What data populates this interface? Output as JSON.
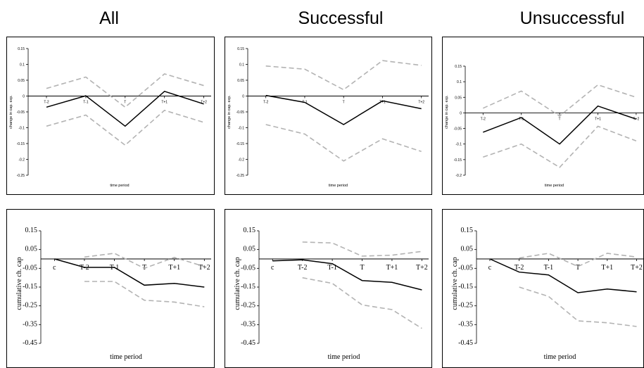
{
  "column_titles": [
    "All",
    "Successful",
    "Unsuccessful"
  ],
  "chart_data": [
    {
      "type": "line",
      "group": "All",
      "row": "top",
      "categories": [
        "T-2",
        "T-1",
        "T",
        "T+1",
        "T+2"
      ],
      "ylabel": "change in cap. exp.",
      "xlabel": "time period",
      "ylim": [
        -0.25,
        0.15
      ],
      "yticks": [
        0.15,
        0.1,
        0.05,
        0,
        -0.05,
        -0.1,
        -0.15,
        -0.2,
        -0.25
      ],
      "ytick_labels": [
        "0.15",
        "0.1",
        "0.05",
        "0",
        "-0.05",
        "-0.1",
        "-0.15",
        "-0.2",
        "-0.25"
      ],
      "series": [
        {
          "style": "solid",
          "values": [
            -0.035,
            0.001,
            -0.095,
            0.015,
            -0.025
          ]
        },
        {
          "style": "dashed",
          "values": [
            0.024,
            0.06,
            -0.035,
            0.07,
            0.033
          ]
        },
        {
          "style": "dashed",
          "values": [
            -0.095,
            -0.06,
            -0.155,
            -0.045,
            -0.083
          ]
        }
      ]
    },
    {
      "type": "line",
      "group": "Successful",
      "row": "top",
      "categories": [
        "T-2",
        "T-1",
        "T",
        "T+1",
        "T+2"
      ],
      "ylabel": "change in cap. exp.",
      "xlabel": "time period",
      "ylim": [
        -0.25,
        0.15
      ],
      "yticks": [
        0.15,
        0.1,
        0.05,
        0,
        -0.05,
        -0.1,
        -0.15,
        -0.2,
        -0.25
      ],
      "ytick_labels": [
        "0.15",
        "0.1",
        "0.05",
        "0",
        "-0.05",
        "-0.1",
        "-0.15",
        "-0.2",
        "-0.25"
      ],
      "series": [
        {
          "style": "solid",
          "values": [
            0.002,
            -0.02,
            -0.09,
            -0.015,
            -0.04
          ]
        },
        {
          "style": "dashed",
          "values": [
            0.095,
            0.085,
            0.02,
            0.112,
            0.097
          ]
        },
        {
          "style": "dashed",
          "values": [
            -0.09,
            -0.12,
            -0.205,
            -0.135,
            -0.175
          ]
        }
      ]
    },
    {
      "type": "line",
      "group": "Unsuccessful",
      "row": "top",
      "categories": [
        "T-2",
        "T-1",
        "T",
        "T+1",
        "T+2"
      ],
      "ylabel": "change in cap. exp.",
      "xlabel": "time period",
      "ylim": [
        -0.2,
        0.15
      ],
      "yticks": [
        0.15,
        0.1,
        0.05,
        0,
        -0.05,
        -0.1,
        -0.15,
        -0.2
      ],
      "ytick_labels": [
        "0.15",
        "0.1",
        "0.05",
        "0",
        "-0.05",
        "-0.1",
        "-0.15",
        "-0.2"
      ],
      "series": [
        {
          "style": "solid",
          "values": [
            -0.062,
            -0.015,
            -0.1,
            0.022,
            -0.02
          ]
        },
        {
          "style": "dashed",
          "values": [
            0.015,
            0.07,
            -0.01,
            0.09,
            0.05
          ]
        },
        {
          "style": "dashed",
          "values": [
            -0.142,
            -0.1,
            -0.175,
            -0.043,
            -0.09
          ]
        }
      ]
    },
    {
      "type": "line",
      "group": "All",
      "row": "bottom",
      "categories": [
        "c",
        "T-2",
        "T-1",
        "T",
        "T+1",
        "T+2"
      ],
      "ylabel": "cumulative ch. cap",
      "xlabel": "time period",
      "ylim": [
        -0.45,
        0.15
      ],
      "yticks": [
        0.15,
        0.05,
        -0.05,
        -0.15,
        -0.25,
        -0.35,
        -0.45
      ],
      "ytick_labels": [
        "0.15",
        "0.05",
        "-0.05",
        "-0.15",
        "-0.25",
        "-0.35",
        "-0.45"
      ],
      "series": [
        {
          "style": "solid",
          "values": [
            0,
            -0.045,
            -0.045,
            -0.14,
            -0.13,
            -0.15
          ]
        },
        {
          "style": "dashed",
          "values": [
            null,
            0.01,
            0.03,
            -0.05,
            0.008,
            -0.04
          ]
        },
        {
          "style": "dashed",
          "values": [
            null,
            -0.12,
            -0.12,
            -0.22,
            -0.23,
            -0.255
          ]
        }
      ]
    },
    {
      "type": "line",
      "group": "Successful",
      "row": "bottom",
      "categories": [
        "c",
        "T-2",
        "T-1",
        "T",
        "T+1",
        "T+2"
      ],
      "ylabel": "cumulative ch. cap",
      "xlabel": "time period",
      "ylim": [
        -0.45,
        0.15
      ],
      "yticks": [
        0.15,
        0.05,
        -0.05,
        -0.15,
        -0.25,
        -0.35,
        -0.45
      ],
      "ytick_labels": [
        "0.15",
        "0.05",
        "-0.05",
        "-0.15",
        "-0.25",
        "-0.35",
        "-0.45"
      ],
      "series": [
        {
          "style": "solid",
          "values": [
            -0.01,
            -0.005,
            -0.025,
            -0.115,
            -0.125,
            -0.165
          ]
        },
        {
          "style": "dashed",
          "values": [
            null,
            0.09,
            0.085,
            0.015,
            0.02,
            0.04
          ]
        },
        {
          "style": "dashed",
          "values": [
            null,
            -0.1,
            -0.13,
            -0.245,
            -0.27,
            -0.37
          ]
        }
      ]
    },
    {
      "type": "line",
      "group": "Unsuccessful",
      "row": "bottom",
      "categories": [
        "c",
        "T-2",
        "T-1",
        "T",
        "T+1",
        "T+2"
      ],
      "ylabel": "cumulative ch. cap",
      "xlabel": "time period",
      "ylim": [
        -0.45,
        0.15
      ],
      "yticks": [
        0.15,
        0.05,
        -0.05,
        -0.15,
        -0.25,
        -0.35,
        -0.45
      ],
      "ytick_labels": [
        "0.15",
        "0.05",
        "-0.05",
        "-0.15",
        "-0.25",
        "-0.35",
        "-0.45"
      ],
      "series": [
        {
          "style": "solid",
          "values": [
            0,
            -0.07,
            -0.085,
            -0.18,
            -0.16,
            -0.175
          ]
        },
        {
          "style": "dashed",
          "values": [
            null,
            0.005,
            0.03,
            -0.04,
            0.03,
            0.01
          ]
        },
        {
          "style": "dashed",
          "values": [
            null,
            -0.15,
            -0.2,
            -0.33,
            -0.34,
            -0.36
          ]
        }
      ]
    }
  ]
}
